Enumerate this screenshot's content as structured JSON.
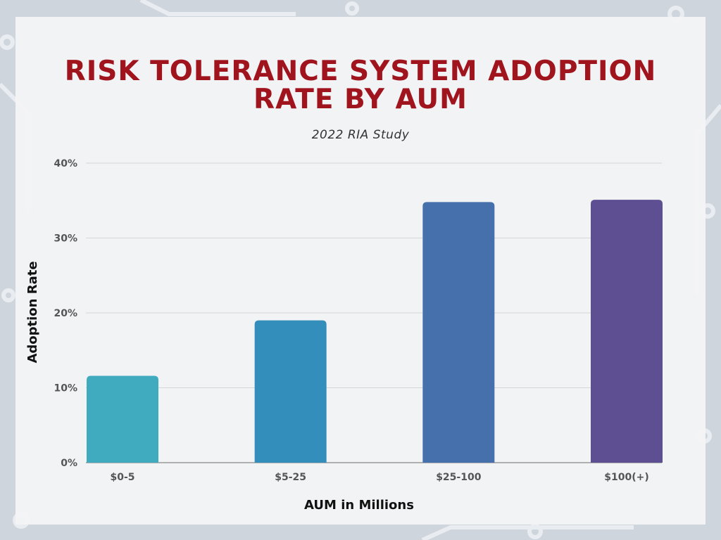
{
  "chart_data": {
    "type": "bar",
    "title": "RISK TOLERANCE SYSTEM ADOPTION RATE BY AUM",
    "subtitle": "2022 RIA Study",
    "xlabel": "AUM in Millions",
    "ylabel": "Adoption Rate",
    "categories": [
      "$0-5",
      "$5-25",
      "$25-100",
      "$100(+)"
    ],
    "values": [
      11.6,
      19.0,
      34.8,
      35.1
    ],
    "colors": [
      "#40abbf",
      "#338ebb",
      "#4670ac",
      "#5e4e92"
    ],
    "ylim": [
      0,
      40
    ],
    "yticks": [
      0,
      10,
      20,
      30,
      40
    ],
    "ytick_labels": [
      "0%",
      "10%",
      "20%",
      "30%",
      "40%"
    ],
    "grid": true,
    "legend": "none"
  }
}
